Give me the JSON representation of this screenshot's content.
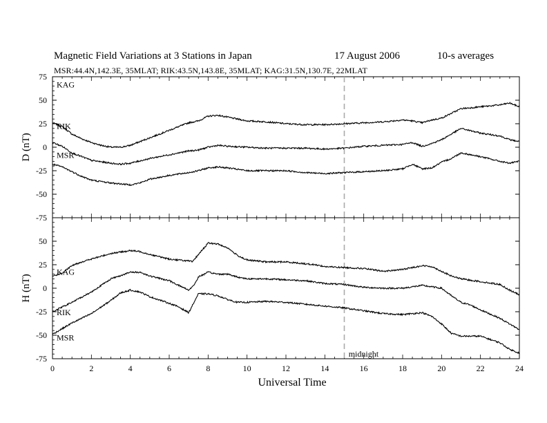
{
  "chart_data": [
    {
      "type": "line",
      "panel": "D",
      "title": "Magnetic Field Variations at 3 Stations in Japan",
      "date": "17  August  2006",
      "averaging": "10-s averages",
      "subtitle": "MSR:44.4N,142.3E, 35MLAT;   RIK:43.5N,143.8E, 35MLAT;   KAG:31.5N,130.7E, 22MLAT",
      "ylabel": "D (nT)",
      "xlabel": "Universal Time",
      "xlim": [
        0,
        24
      ],
      "ylim": [
        -75,
        75
      ],
      "yticks": [
        "75",
        "50",
        "25",
        "0",
        "-25",
        "-50",
        "-75"
      ],
      "xticks": [
        "0",
        "2",
        "4",
        "6",
        "8",
        "10",
        "12",
        "14",
        "16",
        "18",
        "20",
        "22",
        "24"
      ],
      "grid": false,
      "midline_x": 15,
      "series": [
        {
          "name": "KAG",
          "x": [
            0,
            0.5,
            1,
            1.5,
            2,
            2.5,
            3,
            3.5,
            4,
            4.5,
            5,
            6,
            7,
            7.5,
            8,
            8.5,
            9,
            10,
            11,
            12,
            13,
            14,
            15,
            16,
            17,
            18,
            18.5,
            19,
            19.5,
            20,
            20.5,
            21,
            22,
            23,
            23.5,
            24
          ],
          "y": [
            26,
            22,
            14,
            9,
            5,
            2,
            0,
            0,
            2,
            6,
            10,
            18,
            26,
            28,
            33,
            34,
            32,
            28,
            27,
            25,
            24,
            24,
            25,
            26,
            27,
            29,
            28,
            26,
            29,
            31,
            36,
            41,
            43,
            45,
            47,
            43
          ]
        },
        {
          "name": "RIK",
          "x": [
            0,
            0.5,
            1,
            1.5,
            2,
            3,
            3.5,
            4,
            5,
            6,
            7,
            7.5,
            8,
            8.5,
            9,
            10,
            11,
            12,
            13,
            14,
            15,
            16,
            17,
            18,
            18.5,
            19,
            19.5,
            20,
            20.5,
            21,
            22,
            23,
            23.5,
            24
          ],
          "y": [
            5,
            1,
            -6,
            -10,
            -14,
            -17,
            -18,
            -17,
            -12,
            -8,
            -4,
            -3,
            0,
            2,
            1,
            0,
            -1,
            -1,
            -1,
            -2,
            -1,
            1,
            2,
            3,
            5,
            1,
            4,
            8,
            14,
            20,
            15,
            12,
            8,
            6
          ]
        },
        {
          "name": "MSR",
          "x": [
            0,
            0.5,
            1,
            1.5,
            2,
            3,
            4,
            4.5,
            5,
            6,
            7,
            7.5,
            8,
            8.5,
            9,
            10,
            11,
            12,
            13,
            14,
            15,
            16,
            17,
            18,
            18.5,
            19,
            19.5,
            20,
            20.5,
            21,
            22,
            23,
            23.5,
            24
          ],
          "y": [
            -18,
            -21,
            -26,
            -31,
            -35,
            -38,
            -40,
            -38,
            -34,
            -30,
            -27,
            -25,
            -22,
            -21,
            -22,
            -25,
            -25,
            -25,
            -27,
            -28,
            -27,
            -26,
            -25,
            -23,
            -18,
            -23,
            -22,
            -16,
            -12,
            -6,
            -10,
            -15,
            -17,
            -15
          ]
        }
      ],
      "annotations": []
    },
    {
      "type": "line",
      "panel": "H",
      "ylabel": "H (nT)",
      "xlabel": "Universal Time",
      "xlim": [
        0,
        24
      ],
      "ylim": [
        -75,
        75
      ],
      "yticks": [
        "50",
        "25",
        "0",
        "-25",
        "-50",
        "-75"
      ],
      "xticks": [
        "0",
        "2",
        "4",
        "6",
        "8",
        "10",
        "12",
        "14",
        "16",
        "18",
        "20",
        "22",
        "24"
      ],
      "grid": false,
      "midline_x": 15,
      "series": [
        {
          "name": "KAG",
          "x": [
            0,
            0.5,
            1,
            1.5,
            2,
            3,
            4,
            4.5,
            5,
            6,
            7,
            7.2,
            7.5,
            8,
            8.5,
            9,
            9.5,
            10,
            11,
            12,
            13,
            13.5,
            14,
            15,
            16,
            17,
            18,
            19,
            19.5,
            20,
            20.5,
            21,
            22,
            23,
            23.5,
            24
          ],
          "y": [
            13,
            16,
            24,
            28,
            31,
            37,
            40,
            39,
            36,
            31,
            29,
            28,
            36,
            48,
            47,
            43,
            35,
            30,
            28,
            28,
            26,
            25,
            23,
            22,
            21,
            18,
            20,
            24,
            23,
            18,
            13,
            10,
            7,
            4,
            -2,
            -7
          ]
        },
        {
          "name": "RIK",
          "x": [
            0,
            0.5,
            1,
            2,
            3,
            4,
            4.5,
            5,
            6,
            6.5,
            7,
            7.3,
            7.5,
            8,
            8.5,
            9,
            9.5,
            10,
            11,
            12,
            13,
            14,
            15,
            16,
            17,
            18,
            19,
            20,
            20.5,
            21,
            21.5,
            22,
            23,
            23.5,
            24
          ],
          "y": [
            -25,
            -20,
            -15,
            -4,
            10,
            17,
            17,
            13,
            8,
            3,
            -2,
            4,
            12,
            17,
            15,
            15,
            12,
            10,
            10,
            9,
            8,
            5,
            4,
            1,
            0,
            0,
            3,
            0,
            -8,
            -15,
            -18,
            -23,
            -32,
            -38,
            -44
          ]
        },
        {
          "name": "MSR",
          "x": [
            0,
            0.5,
            1,
            2,
            3,
            3.5,
            4,
            4.5,
            5,
            6,
            6.5,
            7,
            7.3,
            7.5,
            8,
            8.5,
            9,
            9.5,
            10,
            11,
            12,
            13,
            14,
            15,
            16,
            17,
            18,
            19,
            19.5,
            20,
            20.5,
            21,
            22,
            23,
            23.5,
            24
          ],
          "y": [
            -49,
            -43,
            -37,
            -27,
            -13,
            -5,
            -2,
            -4,
            -9,
            -16,
            -20,
            -26,
            -14,
            -6,
            -6,
            -8,
            -12,
            -15,
            -15,
            -14,
            -15,
            -17,
            -19,
            -21,
            -24,
            -27,
            -28,
            -26,
            -30,
            -38,
            -48,
            -51,
            -51,
            -58,
            -65,
            -69
          ]
        }
      ],
      "annotations": [
        {
          "x": 15.15,
          "y": -70,
          "text": "midnight"
        }
      ]
    }
  ]
}
